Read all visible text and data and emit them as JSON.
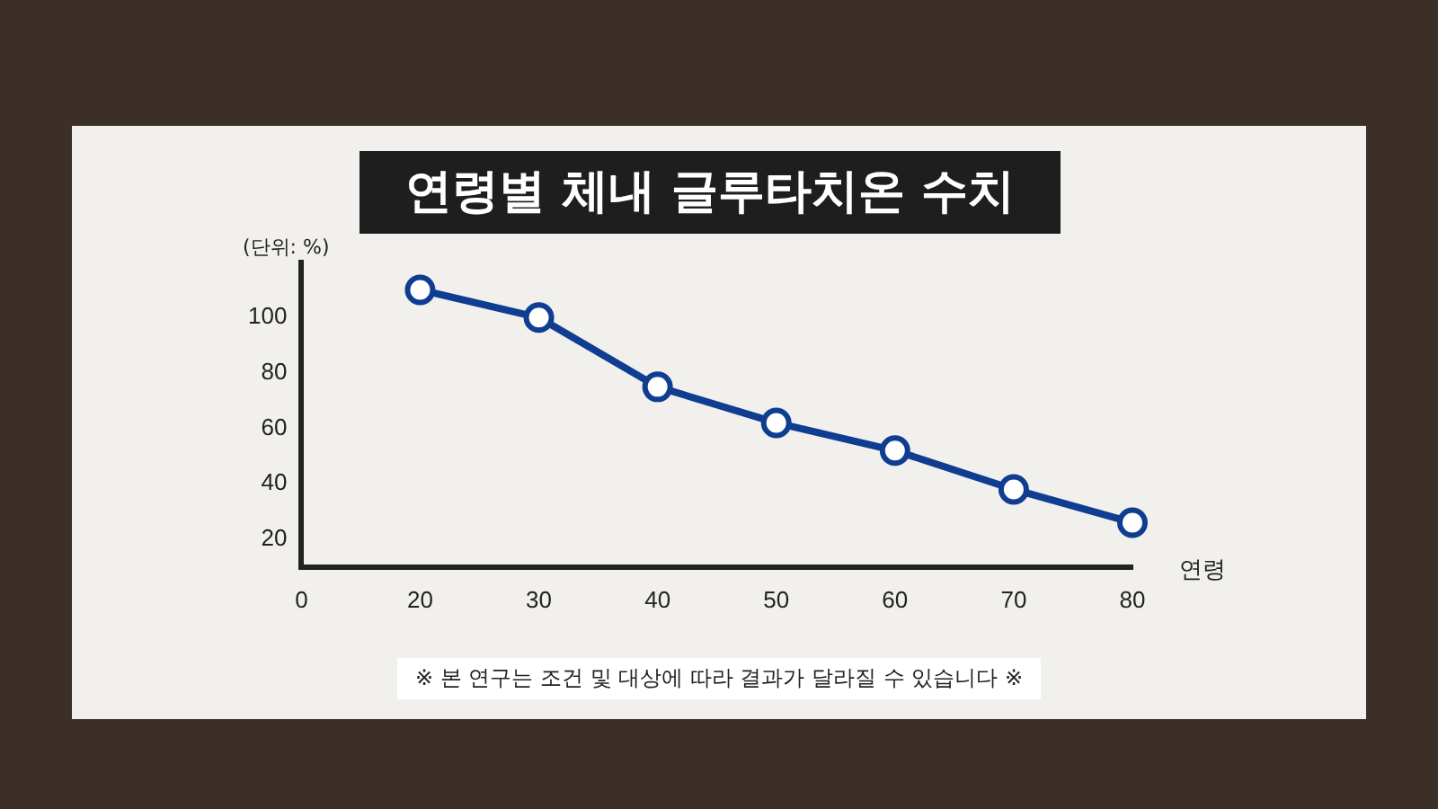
{
  "chart_data": {
    "type": "line",
    "title": "연령별 체내 글루타치온 수치",
    "ylabel": "(단위: %)",
    "xlabel": "연령",
    "annotations": [
      "※ 본 연구는 조건 및 대상에 따라 결과가 달라질 수 있습니다 ※"
    ],
    "categories": [
      "0",
      "20",
      "30",
      "40",
      "50",
      "60",
      "70",
      "80"
    ],
    "series": [
      {
        "color": "#0f3d91",
        "values": [
          null,
          110,
          100,
          75,
          62,
          52,
          38,
          26
        ]
      }
    ],
    "ylim": [
      10,
      120
    ],
    "yticks": [
      20,
      40,
      60,
      80,
      100
    ],
    "grid": false,
    "legend": false,
    "marker": "circle",
    "line_style": "solid"
  }
}
